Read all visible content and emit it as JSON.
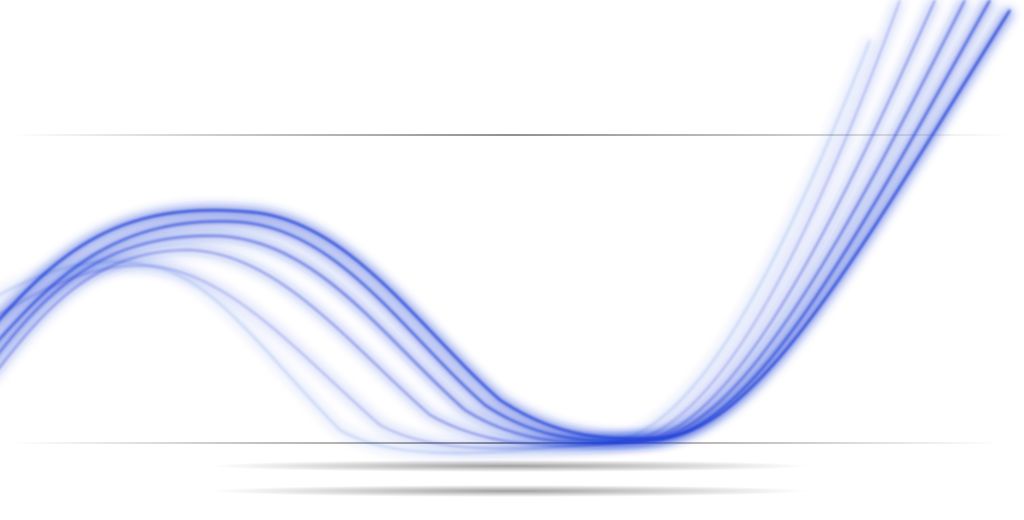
{
  "artwork": {
    "type": "abstract-wave-background",
    "background_color": "#ffffff",
    "wave_color": "#1f3fd6",
    "wave_strand_count": 6,
    "divider_color": "#222222",
    "shadow_color": "#555555"
  }
}
